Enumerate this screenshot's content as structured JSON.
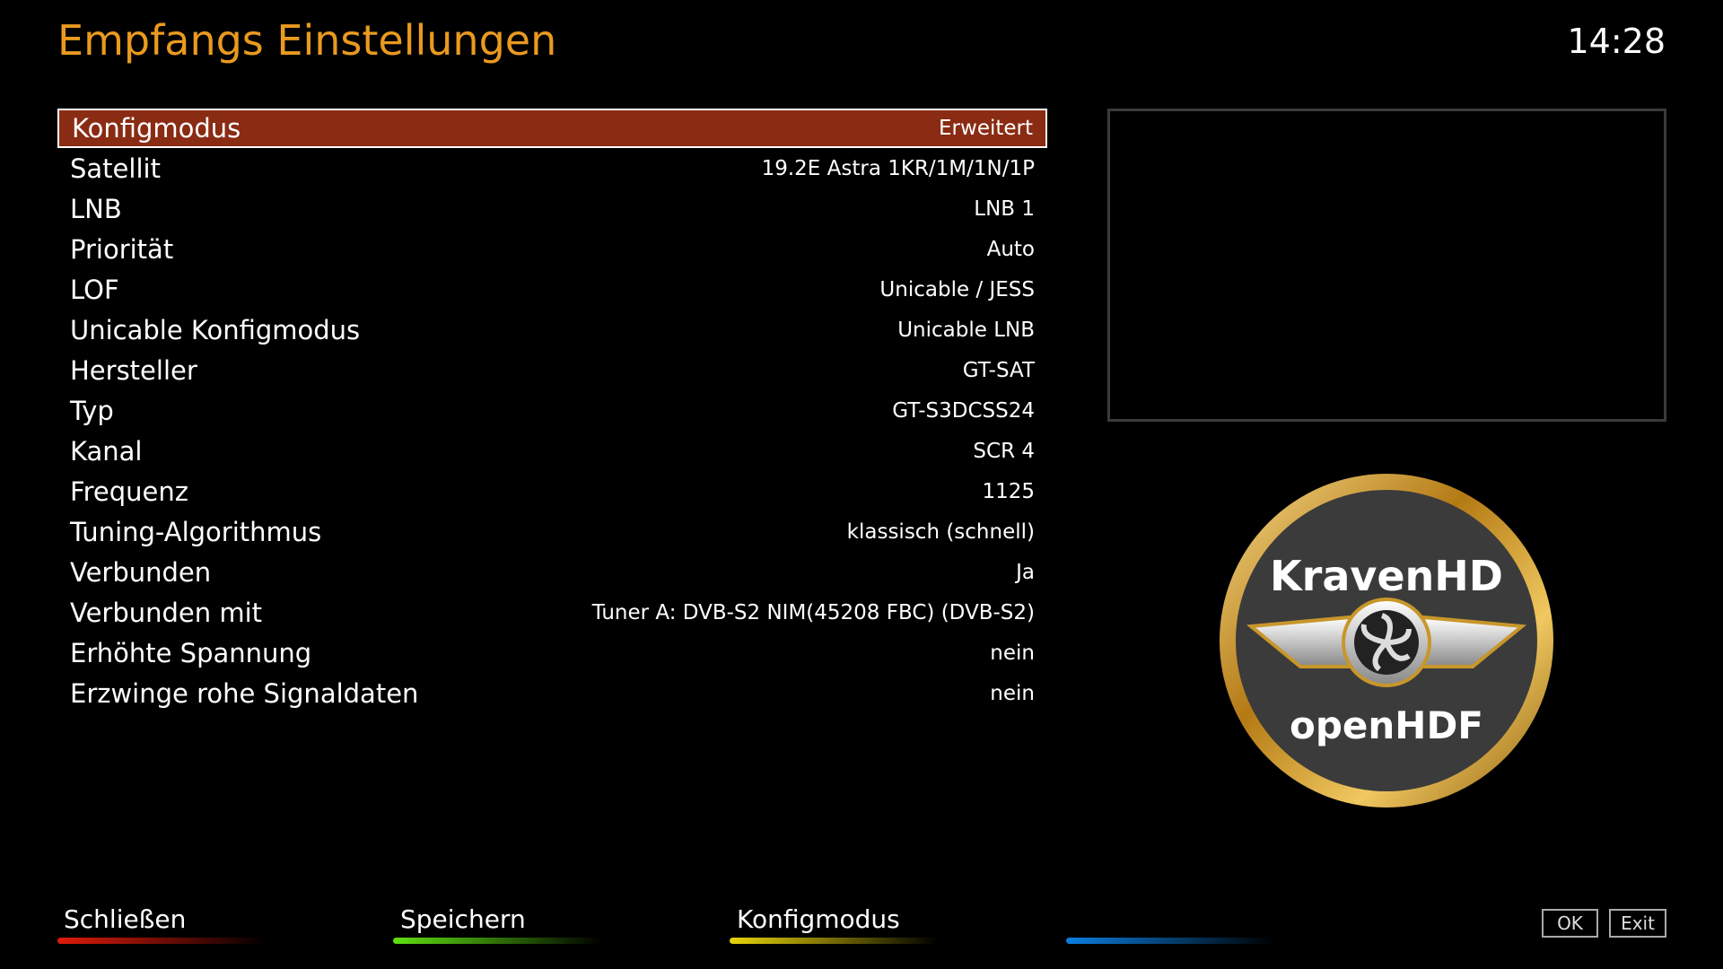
{
  "header": {
    "title": "Empfangs Einstellungen",
    "clock": "14:28"
  },
  "settings": [
    {
      "label": "Konfigmodus",
      "value": "Erweitert",
      "selected": true
    },
    {
      "label": "Satellit",
      "value": "19.2E Astra 1KR/1M/1N/1P"
    },
    {
      "label": "LNB",
      "value": "LNB 1"
    },
    {
      "label": "Priorität",
      "value": "Auto"
    },
    {
      "label": "LOF",
      "value": "Unicable / JESS"
    },
    {
      "label": "Unicable Konfigmodus",
      "value": "Unicable LNB"
    },
    {
      "label": "Hersteller",
      "value": "GT-SAT"
    },
    {
      "label": "Typ",
      "value": "GT-S3DCSS24"
    },
    {
      "label": "Kanal",
      "value": "SCR 4"
    },
    {
      "label": "Frequenz",
      "value": "1125"
    },
    {
      "label": "Tuning-Algorithmus",
      "value": "klassisch (schnell)"
    },
    {
      "label": "Verbunden",
      "value": "Ja"
    },
    {
      "label": "Verbunden mit",
      "value": "Tuner A: DVB-S2 NIM(45208 FBC) (DVB-S2)"
    },
    {
      "label": "Erhöhte Spannung",
      "value": "nein"
    },
    {
      "label": "Erzwinge rohe Signaldaten",
      "value": "nein"
    }
  ],
  "logo": {
    "line1": "KravenHD",
    "line2": "openHDF"
  },
  "footer": {
    "buttons": [
      {
        "label": "Schließen",
        "color": "#e01a0a"
      },
      {
        "label": "Speichern",
        "color": "#5fe010"
      },
      {
        "label": "Konfigmodus",
        "color": "#e8d40a"
      },
      {
        "label": "",
        "color": "#0a7ee0"
      }
    ],
    "ok": "OK",
    "exit": "Exit"
  },
  "colors": {
    "title": "#e99a1f",
    "selection": "#8a2b13"
  }
}
